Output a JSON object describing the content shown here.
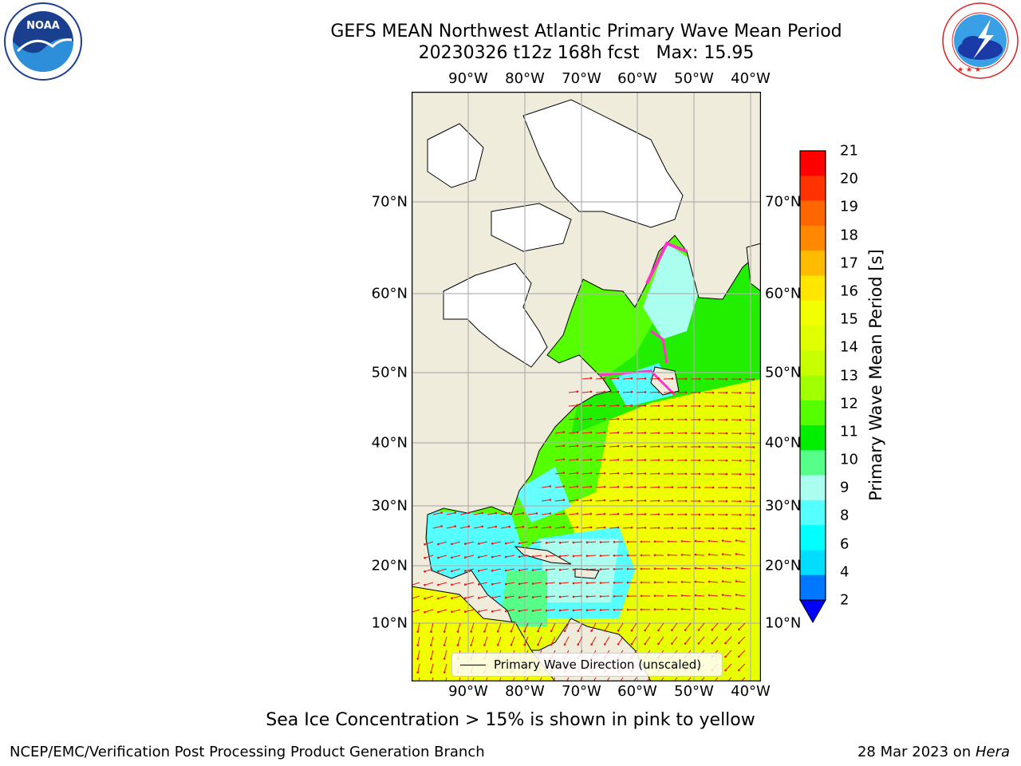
{
  "header": {
    "title": "GEFS MEAN Northwest Atlantic Primary Wave Mean Period",
    "subtitle": "20230326 t12z 168h fcst   Max: 15.95"
  },
  "logos": {
    "left_icon": "noaa-logo-icon",
    "left_text": "NOAA",
    "left_ring_text": "NATIONAL OCEANIC AND ATMOSPHERIC ADMINISTRATION · U.S. DEPARTMENT OF COMMERCE",
    "right_icon": "nws-logo-icon",
    "right_ring_text": "NATIONAL WEATHER SERVICE"
  },
  "map": {
    "lon_labels": [
      "90°W",
      "80°W",
      "70°W",
      "60°W",
      "50°W",
      "40°W"
    ],
    "lat_labels": [
      "70°N",
      "60°N",
      "50°N",
      "40°N",
      "30°N",
      "20°N",
      "10°N"
    ],
    "legend_label": "Primary Wave Direction (unscaled)",
    "colors": {
      "land": "#efecdc",
      "ice_free_white": "#ffffff",
      "grid": "#b0b0b0",
      "arrows": "#ee1111"
    }
  },
  "colorbar": {
    "label": "Primary Wave Mean Period [s]",
    "ticks": [
      "21",
      "20",
      "19",
      "18",
      "17",
      "16",
      "15",
      "14",
      "13",
      "12",
      "11",
      "10",
      "9",
      "8",
      "6",
      "4",
      "2"
    ],
    "colors": [
      "#ff0000",
      "#ff3300",
      "#ff6600",
      "#ff8800",
      "#ffbb00",
      "#ffe600",
      "#f2ff00",
      "#e0ff00",
      "#c8ff00",
      "#a0ff00",
      "#55ff00",
      "#00ee00",
      "#55ff88",
      "#aaffee",
      "#55ffff",
      "#00ffff",
      "#00ddff",
      "#0077ff"
    ],
    "extend_color": "#0000ff"
  },
  "note": "Sea Ice Concentration > 15% is shown in pink to yellow",
  "footer": {
    "left": "NCEP/EMC/Verification Post Processing Product Generation Branch",
    "right_date": "28 Mar 2023 on ",
    "right_host": "Hera"
  }
}
